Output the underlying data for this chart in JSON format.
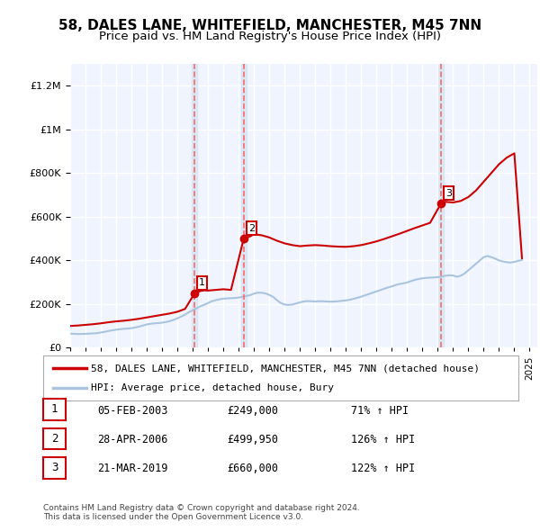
{
  "title1": "58, DALES LANE, WHITEFIELD, MANCHESTER, M45 7NN",
  "title2": "Price paid vs. HM Land Registry's House Price Index (HPI)",
  "legend_line1": "58, DALES LANE, WHITEFIELD, MANCHESTER, M45 7NN (detached house)",
  "legend_line2": "HPI: Average price, detached house, Bury",
  "footnote": "Contains HM Land Registry data © Crown copyright and database right 2024.\nThis data is licensed under the Open Government Licence v3.0.",
  "sale_labels": [
    "1",
    "2",
    "3"
  ],
  "sale_dates": [
    "05-FEB-2003",
    "28-APR-2006",
    "21-MAR-2019"
  ],
  "sale_prices": [
    249000,
    499950,
    660000
  ],
  "sale_hpi_pct": [
    "71% ↑ HPI",
    "126% ↑ HPI",
    "122% ↑ HPI"
  ],
  "background_color": "#ffffff",
  "plot_bg_color": "#f0f4ff",
  "grid_color": "#ffffff",
  "hpi_line_color": "#aac4e0",
  "price_line_color": "#cc0000",
  "sale_vline_color": "#ff6666",
  "sale_marker_color": "#cc0000",
  "ylim": [
    0,
    1300000
  ],
  "xlim_start": 1995.0,
  "xlim_end": 2025.5,
  "hpi_data": {
    "years": [
      1995.0,
      1995.25,
      1995.5,
      1995.75,
      1996.0,
      1996.25,
      1996.5,
      1996.75,
      1997.0,
      1997.25,
      1997.5,
      1997.75,
      1998.0,
      1998.25,
      1998.5,
      1998.75,
      1999.0,
      1999.25,
      1999.5,
      1999.75,
      2000.0,
      2000.25,
      2000.5,
      2000.75,
      2001.0,
      2001.25,
      2001.5,
      2001.75,
      2002.0,
      2002.25,
      2002.5,
      2002.75,
      2003.0,
      2003.25,
      2003.5,
      2003.75,
      2004.0,
      2004.25,
      2004.5,
      2004.75,
      2005.0,
      2005.25,
      2005.5,
      2005.75,
      2006.0,
      2006.25,
      2006.5,
      2006.75,
      2007.0,
      2007.25,
      2007.5,
      2007.75,
      2008.0,
      2008.25,
      2008.5,
      2008.75,
      2009.0,
      2009.25,
      2009.5,
      2009.75,
      2010.0,
      2010.25,
      2010.5,
      2010.75,
      2011.0,
      2011.25,
      2011.5,
      2011.75,
      2012.0,
      2012.25,
      2012.5,
      2012.75,
      2013.0,
      2013.25,
      2013.5,
      2013.75,
      2014.0,
      2014.25,
      2014.5,
      2014.75,
      2015.0,
      2015.25,
      2015.5,
      2015.75,
      2016.0,
      2016.25,
      2016.5,
      2016.75,
      2017.0,
      2017.25,
      2017.5,
      2017.75,
      2018.0,
      2018.25,
      2018.5,
      2018.75,
      2019.0,
      2019.25,
      2019.5,
      2019.75,
      2020.0,
      2020.25,
      2020.5,
      2020.75,
      2021.0,
      2021.25,
      2021.5,
      2021.75,
      2022.0,
      2022.25,
      2022.5,
      2022.75,
      2023.0,
      2023.25,
      2023.5,
      2023.75,
      2024.0,
      2024.25,
      2024.5
    ],
    "values": [
      65000,
      64000,
      63000,
      63500,
      64000,
      65000,
      66000,
      67000,
      70000,
      73000,
      77000,
      80000,
      83000,
      85000,
      87000,
      88000,
      90000,
      93000,
      97000,
      102000,
      107000,
      110000,
      112000,
      113000,
      115000,
      118000,
      122000,
      128000,
      135000,
      143000,
      152000,
      163000,
      172000,
      181000,
      190000,
      197000,
      205000,
      213000,
      218000,
      222000,
      225000,
      226000,
      227000,
      228000,
      230000,
      233000,
      237000,
      241000,
      248000,
      252000,
      252000,
      249000,
      242000,
      233000,
      218000,
      205000,
      198000,
      196000,
      198000,
      203000,
      208000,
      212000,
      214000,
      213000,
      212000,
      213000,
      213000,
      212000,
      211000,
      212000,
      213000,
      215000,
      217000,
      220000,
      224000,
      229000,
      234000,
      240000,
      246000,
      252000,
      258000,
      264000,
      270000,
      276000,
      281000,
      287000,
      292000,
      295000,
      299000,
      305000,
      311000,
      315000,
      318000,
      320000,
      321000,
      322000,
      323000,
      326000,
      330000,
      332000,
      331000,
      325000,
      330000,
      340000,
      355000,
      370000,
      385000,
      400000,
      415000,
      420000,
      415000,
      408000,
      400000,
      395000,
      392000,
      390000,
      393000,
      398000,
      402000
    ]
  },
  "price_data": {
    "years": [
      1995.0,
      1995.5,
      1996.0,
      1996.5,
      1997.0,
      1997.5,
      1998.0,
      1998.5,
      1999.0,
      1999.5,
      2000.0,
      2000.5,
      2001.0,
      2001.5,
      2002.0,
      2002.5,
      2003.12,
      2003.5,
      2003.75,
      2004.0,
      2004.5,
      2005.0,
      2005.5,
      2006.33,
      2006.75,
      2007.0,
      2007.5,
      2008.0,
      2008.5,
      2009.0,
      2009.5,
      2010.0,
      2010.5,
      2011.0,
      2011.5,
      2012.0,
      2012.5,
      2013.0,
      2013.5,
      2014.0,
      2014.5,
      2015.0,
      2015.5,
      2016.0,
      2016.5,
      2017.0,
      2017.5,
      2018.0,
      2018.5,
      2019.21,
      2019.5,
      2020.0,
      2020.5,
      2021.0,
      2021.5,
      2022.0,
      2022.5,
      2023.0,
      2023.5,
      2024.0,
      2024.5
    ],
    "values": [
      100000,
      102000,
      105000,
      108000,
      112000,
      117000,
      121000,
      124000,
      128000,
      133000,
      139000,
      145000,
      151000,
      157000,
      165000,
      178000,
      249000,
      260000,
      263000,
      262000,
      265000,
      268000,
      265000,
      499950,
      510000,
      520000,
      515000,
      505000,
      490000,
      478000,
      470000,
      465000,
      468000,
      470000,
      468000,
      465000,
      463000,
      462000,
      465000,
      470000,
      478000,
      487000,
      498000,
      510000,
      522000,
      535000,
      548000,
      560000,
      572000,
      660000,
      668000,
      665000,
      672000,
      690000,
      720000,
      760000,
      800000,
      840000,
      870000,
      890000,
      410000
    ]
  },
  "sale_year_float": [
    2003.09,
    2006.33,
    2019.21
  ],
  "xtick_years": [
    1995,
    1996,
    1997,
    1998,
    1999,
    2000,
    2001,
    2002,
    2003,
    2004,
    2005,
    2006,
    2007,
    2008,
    2009,
    2010,
    2011,
    2012,
    2013,
    2014,
    2015,
    2016,
    2017,
    2018,
    2019,
    2020,
    2021,
    2022,
    2023,
    2024,
    2025
  ]
}
